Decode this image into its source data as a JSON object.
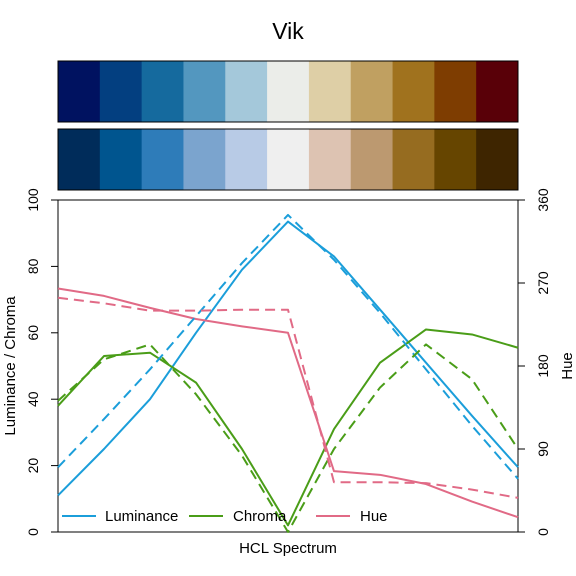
{
  "title": "Vik",
  "palette_top": [
    "#001260",
    "#033F80",
    "#156A9E",
    "#5397BF",
    "#A4C8DA",
    "#EBEDE9",
    "#DECFA6",
    "#C0A061",
    "#A0721E",
    "#7E3D01",
    "#590008"
  ],
  "palette_bottom": [
    "#002C5A",
    "#00558F",
    "#2E7CB9",
    "#7BA4CE",
    "#B8CBE6",
    "#EFEFEF",
    "#DDC3B2",
    "#BC9970",
    "#966C20",
    "#664500",
    "#3E2500"
  ],
  "chart_data": {
    "type": "line",
    "title": "Vik",
    "xlabel": "HCL Spectrum",
    "ylabel_left": "Luminance / Chroma",
    "ylabel_right": "Hue",
    "ylim_left": [
      0,
      100
    ],
    "ylim_right": [
      0,
      360
    ],
    "yticks_left": [
      "0",
      "20",
      "40",
      "60",
      "80",
      "100"
    ],
    "yticks_right": [
      "0",
      "90",
      "180",
      "270",
      "360"
    ],
    "x": [
      1,
      2,
      3,
      4,
      5,
      6,
      7,
      8,
      9,
      10,
      11
    ],
    "series": [
      {
        "name": "Luminance",
        "axis": "left",
        "style": "solid",
        "color": "#1B9EDA",
        "values": [
          11,
          25,
          40,
          60,
          79,
          93.5,
          83,
          67,
          51,
          35,
          19.5
        ]
      },
      {
        "name": "Chroma",
        "axis": "left",
        "style": "solid",
        "color": "#4A9D18",
        "values": [
          38,
          53,
          54,
          45,
          25,
          2,
          31,
          51,
          61,
          59.5,
          55.5
        ]
      },
      {
        "name": "Hue",
        "axis": "right",
        "style": "solid",
        "color": "#E16A86",
        "values": [
          264,
          256,
          243,
          231,
          223,
          216,
          66,
          62,
          52,
          33,
          16
        ]
      },
      {
        "name": "Luminance (bottom palette)",
        "axis": "left",
        "style": "dashed",
        "color": "#1B9EDA",
        "values": [
          19.5,
          34,
          49,
          65,
          81,
          95.5,
          82,
          66,
          49,
          32,
          16
        ]
      },
      {
        "name": "Chroma (bottom palette)",
        "axis": "left",
        "style": "dashed",
        "color": "#4A9D18",
        "values": [
          39.5,
          52,
          56.5,
          41.5,
          23,
          0,
          25,
          43.5,
          56.5,
          46,
          25
        ]
      },
      {
        "name": "Hue (bottom palette)",
        "axis": "right",
        "style": "dashed",
        "color": "#E16A86",
        "values": [
          254,
          248,
          240,
          240,
          241,
          241,
          54,
          54,
          53,
          46,
          37
        ]
      }
    ],
    "legend": {
      "placement": "bottom-left",
      "entries": [
        "Luminance",
        "Chroma",
        "Hue"
      ]
    }
  }
}
